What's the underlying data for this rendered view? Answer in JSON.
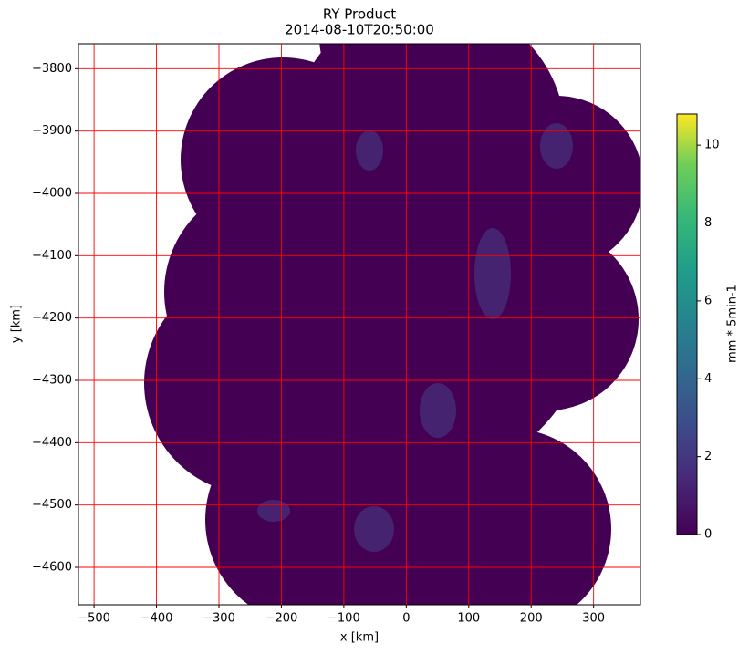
{
  "chart_data": {
    "type": "image",
    "title": "RY Product",
    "subtitle": "2014-08-10T20:50:00",
    "x_label": "x [km]",
    "y_label": "y [km]",
    "xlim": [
      -525,
      375
    ],
    "ylim": [
      -4660,
      -3760
    ],
    "xticks": [
      {
        "value": -500,
        "label": "−500"
      },
      {
        "value": -400,
        "label": "−400"
      },
      {
        "value": -300,
        "label": "−300"
      },
      {
        "value": -200,
        "label": "−200"
      },
      {
        "value": -100,
        "label": "−100"
      },
      0,
      100,
      200,
      300
    ],
    "yticks": [
      {
        "value": -3800,
        "label": "−3800"
      },
      {
        "value": -3900,
        "label": "−3900"
      },
      {
        "value": -4000,
        "label": "−4000"
      },
      {
        "value": -4100,
        "label": "−4100"
      },
      {
        "value": -4200,
        "label": "−4200"
      },
      {
        "value": -4300,
        "label": "−4300"
      },
      {
        "value": -4400,
        "label": "−4400"
      },
      {
        "value": -4500,
        "label": "−4500"
      },
      {
        "value": -4600,
        "label": "−4600"
      }
    ],
    "grid": true,
    "grid_color": "#ff0000",
    "colorbar": {
      "label": "mm * 5min-1",
      "lim": [
        0,
        10.8
      ],
      "ticks": [
        0,
        2,
        4,
        6,
        8,
        10
      ],
      "cmap": "viridis"
    }
  }
}
